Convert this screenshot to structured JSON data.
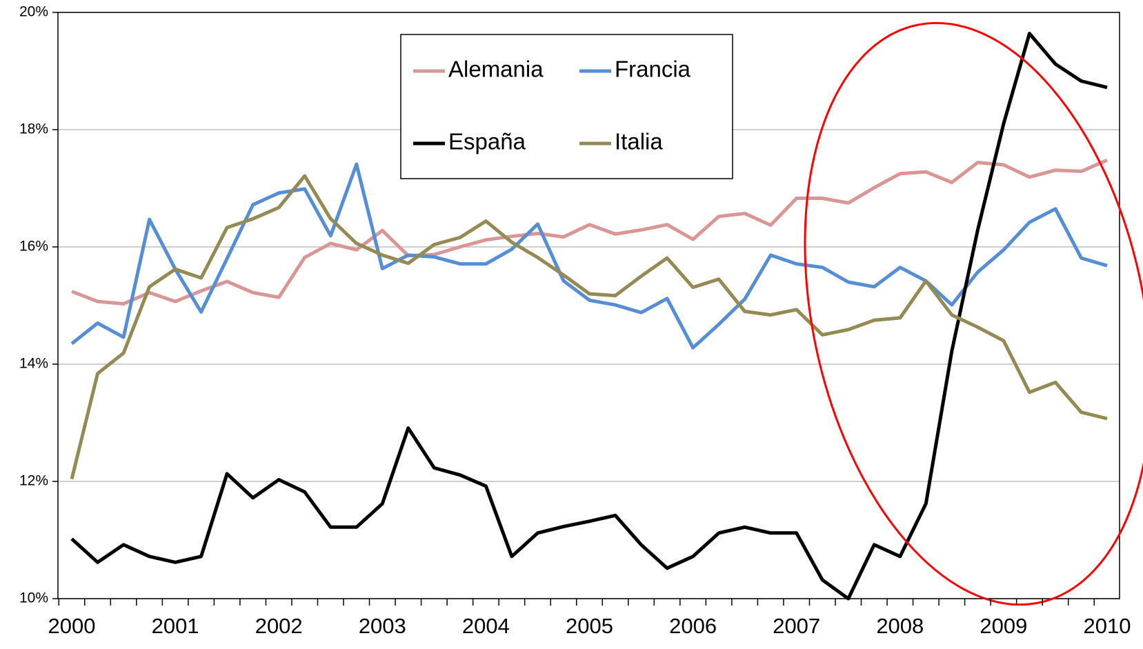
{
  "chart_data": {
    "type": "line",
    "categories": [
      "2000",
      null,
      null,
      null,
      "2001",
      null,
      null,
      null,
      "2002",
      null,
      null,
      null,
      "2003",
      null,
      null,
      null,
      "2004",
      null,
      null,
      null,
      "2005",
      null,
      null,
      null,
      "2006",
      null,
      null,
      null,
      "2007",
      null,
      null,
      null,
      "2008",
      null,
      null,
      null,
      "2009",
      null,
      null,
      null,
      "2010"
    ],
    "series": [
      {
        "name": "Alemania",
        "color": "#d99694",
        "values": [
          15.24,
          15.07,
          15.03,
          15.22,
          15.07,
          15.25,
          15.41,
          15.22,
          15.14,
          15.82,
          16.06,
          15.95,
          16.28,
          15.85,
          15.87,
          16.0,
          16.12,
          16.18,
          16.23,
          16.17,
          16.38,
          16.22,
          16.29,
          16.38,
          16.13,
          16.52,
          16.57,
          16.37,
          16.83,
          16.83,
          16.75,
          17.01,
          17.25,
          17.28,
          17.1,
          17.44,
          17.4,
          17.19,
          17.31,
          17.29,
          17.48
        ]
      },
      {
        "name": "Francia",
        "color": "#558ed5",
        "values": [
          14.35,
          14.7,
          14.46,
          16.47,
          15.62,
          14.89,
          15.8,
          16.72,
          16.92,
          16.99,
          16.19,
          17.41,
          15.63,
          15.86,
          15.83,
          15.71,
          15.71,
          15.96,
          16.39,
          15.42,
          15.09,
          15.01,
          14.88,
          15.12,
          14.28,
          14.68,
          15.11,
          15.86,
          15.71,
          15.65,
          15.4,
          15.32,
          15.65,
          15.42,
          15.01,
          15.57,
          15.95,
          16.42,
          16.65,
          15.81,
          15.68
        ]
      },
      {
        "name": "España",
        "color": "#000000",
        "values": [
          11.02,
          10.62,
          10.92,
          10.72,
          10.62,
          10.72,
          12.13,
          11.72,
          12.03,
          11.82,
          11.22,
          11.22,
          11.62,
          12.91,
          12.23,
          12.11,
          11.92,
          10.72,
          11.12,
          11.23,
          11.32,
          11.42,
          10.92,
          10.52,
          10.72,
          11.12,
          11.22,
          11.12,
          11.12,
          10.32,
          10.0,
          10.92,
          10.72,
          11.62,
          14.22,
          16.29,
          18.1,
          19.64,
          19.12,
          18.83,
          18.72
        ]
      },
      {
        "name": "Italia",
        "color": "#948a54",
        "values": [
          12.04,
          13.84,
          14.19,
          15.32,
          15.62,
          15.47,
          16.33,
          16.48,
          16.67,
          17.21,
          16.48,
          16.06,
          15.86,
          15.72,
          16.04,
          16.16,
          16.44,
          16.08,
          15.82,
          15.52,
          15.2,
          15.17,
          15.5,
          15.81,
          15.31,
          15.45,
          14.9,
          14.84,
          14.93,
          14.5,
          14.59,
          14.75,
          14.79,
          15.42,
          14.84,
          14.63,
          14.4,
          13.52,
          13.69,
          13.18,
          13.07
        ]
      }
    ],
    "ylim": [
      10,
      20
    ],
    "yticks": [
      {
        "value": 10,
        "label": "10%"
      },
      {
        "value": 12,
        "label": "12%"
      },
      {
        "value": 14,
        "label": "14%"
      },
      {
        "value": 16,
        "label": "16%"
      },
      {
        "value": 18,
        "label": "18%"
      },
      {
        "value": 20,
        "label": "20%"
      }
    ],
    "grid": true
  }
}
